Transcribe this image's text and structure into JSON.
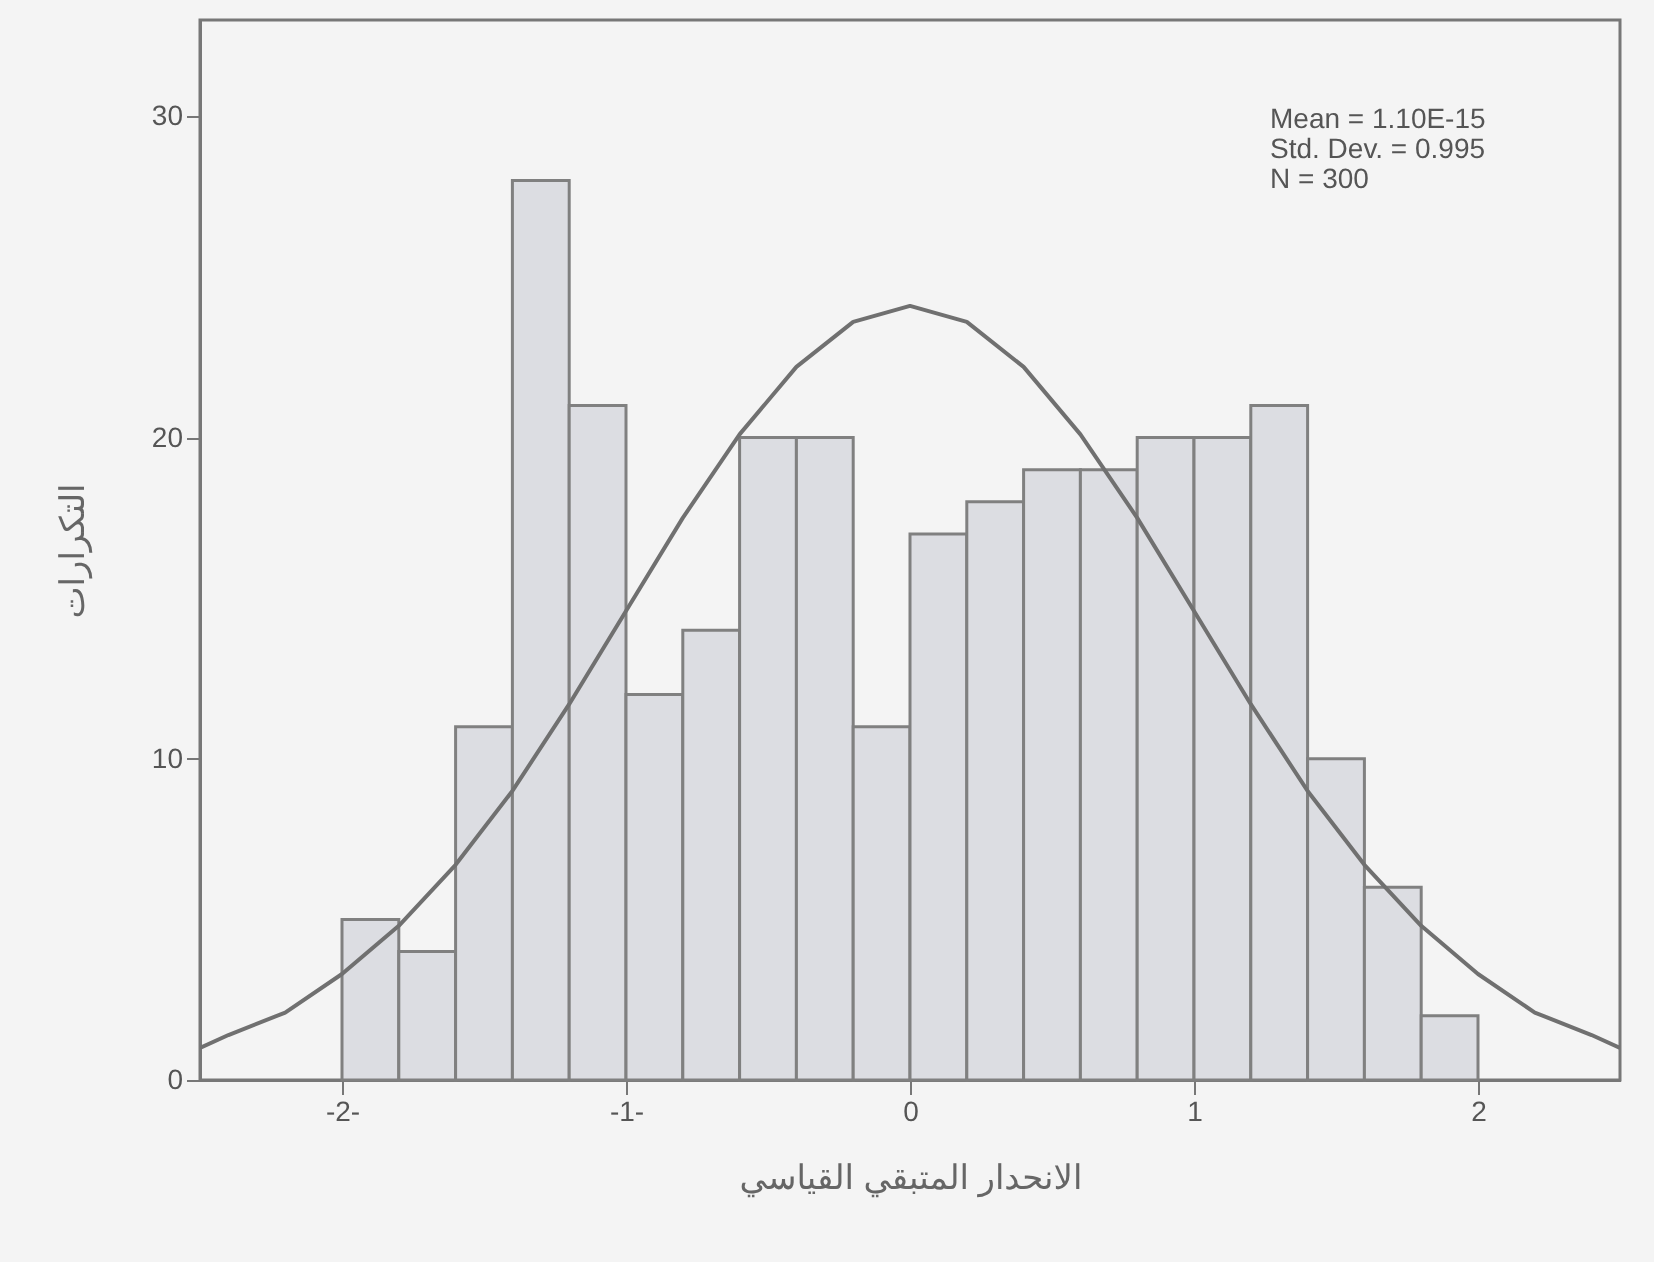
{
  "chart_data": {
    "type": "histogram",
    "xlabel": "الانحدار المتبقي القياسي",
    "ylabel": "التكرارات",
    "annotations": [
      "Mean = 1.10E-15",
      "Std. Dev. = 0.995",
      "N = 300"
    ],
    "bins": [
      -2.0,
      -1.8,
      -1.6,
      -1.4,
      -1.2,
      -1.0,
      -0.8,
      -0.6,
      -0.4,
      -0.2,
      0.0,
      0.2,
      0.4,
      0.6,
      0.8,
      1.0,
      1.2,
      1.4,
      1.6,
      1.8,
      2.0
    ],
    "series": [
      {
        "type": "histogram",
        "color": "#dcdde2",
        "values": [
          5,
          4,
          11,
          28,
          21,
          12,
          14,
          20,
          20,
          11,
          17,
          18,
          19,
          19,
          20,
          20,
          21,
          10,
          6,
          2
        ]
      },
      {
        "type": "line",
        "color": "#707070",
        "x": [
          -2.5,
          -2.4,
          -2.2,
          -2.0,
          -1.8,
          -1.6,
          -1.4,
          -1.2,
          -1.0,
          -0.8,
          -0.6,
          -0.4,
          -0.2,
          0.0,
          0.2,
          0.4,
          0.6,
          0.8,
          1.0,
          1.2,
          1.4,
          1.6,
          1.8,
          2.0,
          2.2,
          2.4,
          2.5
        ],
        "values": [
          1.0,
          1.4,
          2.1,
          3.3,
          4.8,
          6.7,
          9.0,
          11.7,
          14.6,
          17.5,
          20.1,
          22.2,
          23.6,
          24.1,
          23.6,
          22.2,
          20.1,
          17.5,
          14.6,
          11.7,
          9.0,
          6.7,
          4.8,
          3.3,
          2.1,
          1.4,
          1.0
        ]
      }
    ],
    "xlim": [
      -2.5,
      2.5
    ],
    "ylim": [
      0,
      33
    ],
    "xticks": [
      {
        "value": -2,
        "label": "-2-"
      },
      {
        "value": -1,
        "label": "-1-"
      },
      0,
      1,
      2
    ],
    "yticks": [
      0,
      10,
      20,
      30
    ],
    "grid": false
  }
}
